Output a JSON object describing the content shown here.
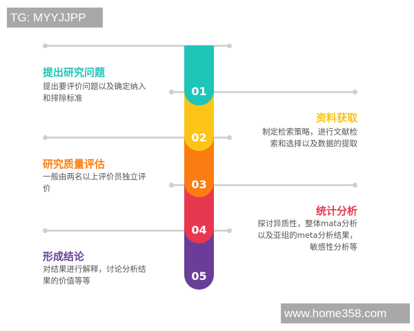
{
  "watermarks": {
    "top_left": "TG: MYYJJPP",
    "bottom_right": "www.home358.com"
  },
  "steps": [
    {
      "number": "01",
      "title": "提出研究问题",
      "description": "提出要评价问题以及确定纳入和排除标准",
      "color": "#1ec5b8"
    },
    {
      "number": "02",
      "title": "资料获取",
      "description": "制定检索策略，进行文献检索和选择以及数据的提取",
      "color": "#fbc416"
    },
    {
      "number": "03",
      "title": "研究质量评估",
      "description": "一般由两名以上评价员独立评价",
      "color": "#fb7d12"
    },
    {
      "number": "04",
      "title": "统计分析",
      "description": "探讨异质性，整体mata分析以及亚组的meta分析结果，敏感性分析等",
      "color": "#e7384f"
    },
    {
      "number": "05",
      "title": "形成结论",
      "description": "对结果进行解释，讨论分析结果的价值等等",
      "color": "#6a3e98"
    }
  ]
}
